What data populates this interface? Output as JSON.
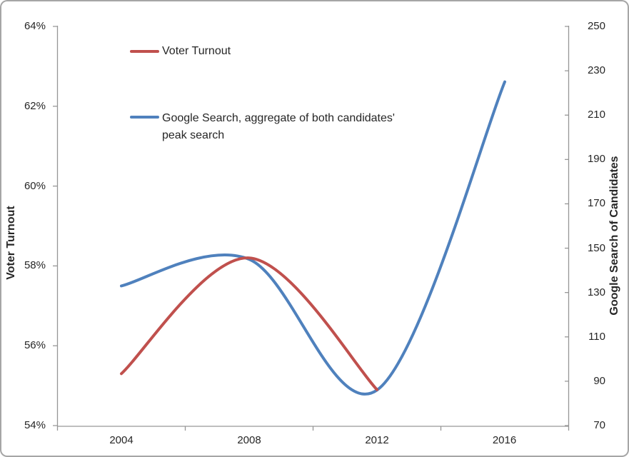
{
  "chart": {
    "background": "#FFFFFF",
    "border_color": "#A6A6A6",
    "axis_line_color": "#969696",
    "text_color": "#262626"
  },
  "chart_data": {
    "type": "line",
    "smooth": true,
    "grid": false,
    "title": "",
    "categories": [
      "2004",
      "2008",
      "2012",
      "2016"
    ],
    "series": [
      {
        "name": "Voter Turnout",
        "axis": "left",
        "color": "#C0504D",
        "values": [
          55.3,
          58.2,
          54.9,
          null
        ]
      },
      {
        "name": "Google Search, aggregate of both candidates' peak search",
        "axis": "right",
        "color": "#4F81BD",
        "values": [
          133,
          145,
          86,
          225
        ]
      }
    ],
    "left_axis": {
      "title": "Voter Turnout",
      "min": 54,
      "max": 64,
      "ticks": [
        "64%",
        "62%",
        "60%",
        "58%",
        "56%",
        "54%"
      ]
    },
    "right_axis": {
      "title": "Google Search of Candidates",
      "min": 70,
      "max": 250,
      "ticks": [
        "250",
        "230",
        "210",
        "190",
        "170",
        "150",
        "130",
        "110",
        "90",
        "70"
      ]
    },
    "legend": {
      "position": "inside-top-left",
      "entries": [
        {
          "label": "Voter Turnout",
          "label_lines": [
            "Voter Turnout"
          ],
          "color": "#C0504D"
        },
        {
          "label": "Google Search, aggregate of both candidates' peak search",
          "label_lines": [
            "Google Search, aggregate of both candidates'",
            "peak search"
          ],
          "color": "#4F81BD"
        }
      ]
    }
  }
}
